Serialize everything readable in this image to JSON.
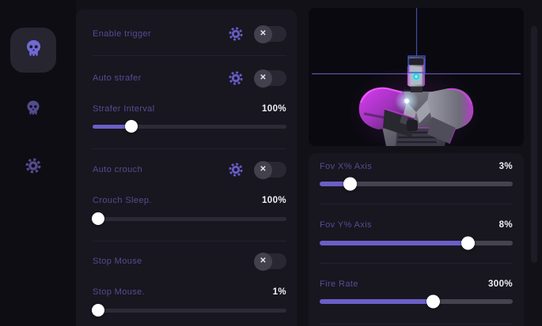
{
  "ui": {
    "toggle_off_glyph": "✕",
    "accent_color": "#6a5fc7",
    "label_color": "#544d93",
    "value_color": "#f0eff6",
    "magenta_color": "#c732dd",
    "teal_color": "#2fd0de",
    "crosshair_color": "#4a4fa5"
  },
  "sidebar": {
    "items": [
      {
        "icon": "skull-icon",
        "active": true
      },
      {
        "icon": "skull-icon",
        "active": false
      },
      {
        "icon": "gear-icon",
        "active": false
      }
    ]
  },
  "features": {
    "rows": [
      {
        "kind": "toggle",
        "label": "Enable trigger",
        "has_gear": true,
        "state": "off"
      },
      {
        "kind": "toggle",
        "label": "Auto strafer",
        "has_gear": true,
        "state": "off"
      },
      {
        "kind": "slider",
        "label": "Strafer Interval",
        "value": "100%",
        "percent": 20
      },
      {
        "kind": "toggle",
        "label": "Auto crouch",
        "has_gear": true,
        "state": "off"
      },
      {
        "kind": "slider",
        "label": "Crouch Sleep.",
        "value": "100%",
        "percent": 3
      },
      {
        "kind": "toggle",
        "label": "Stop Mouse",
        "has_gear": false,
        "state": "off"
      },
      {
        "kind": "slider",
        "label": "Stop Mouse.",
        "value": "1%",
        "percent": 3
      }
    ]
  },
  "preview": {
    "model": "robot-bust-with-fov-crosshair"
  },
  "aim": {
    "sliders": [
      {
        "label": "Fov X% Axis",
        "value": "3%",
        "percent": 16
      },
      {
        "label": "Fov Y% Axis",
        "value": "8%",
        "percent": 77
      },
      {
        "label": "Fire Rate",
        "value": "300%",
        "percent": 59
      }
    ]
  }
}
